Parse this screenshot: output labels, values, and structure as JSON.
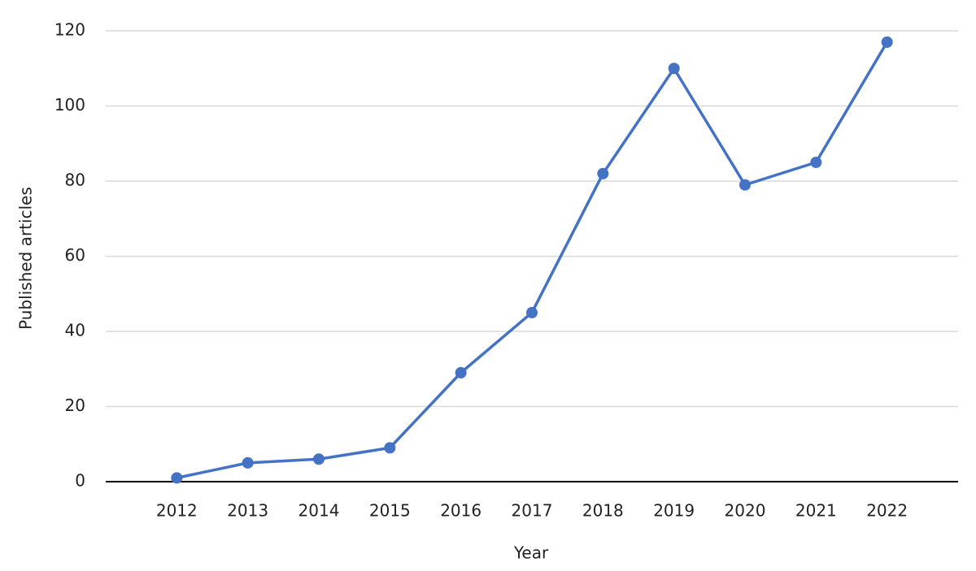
{
  "chart_data": {
    "type": "line",
    "x_label": "Year",
    "y_label": "Published articles",
    "categories": [
      "2012",
      "2013",
      "2014",
      "2015",
      "2016",
      "2017",
      "2018",
      "2019",
      "2020",
      "2021",
      "2022"
    ],
    "series": [
      {
        "name": "Published articles",
        "color": "#4472c4",
        "values": [
          1,
          5,
          6,
          9,
          29,
          45,
          82,
          110,
          79,
          85,
          117
        ]
      }
    ],
    "ylim": [
      0,
      120
    ],
    "yticks": [
      0,
      20,
      40,
      60,
      80,
      100,
      120
    ],
    "grid": true
  }
}
